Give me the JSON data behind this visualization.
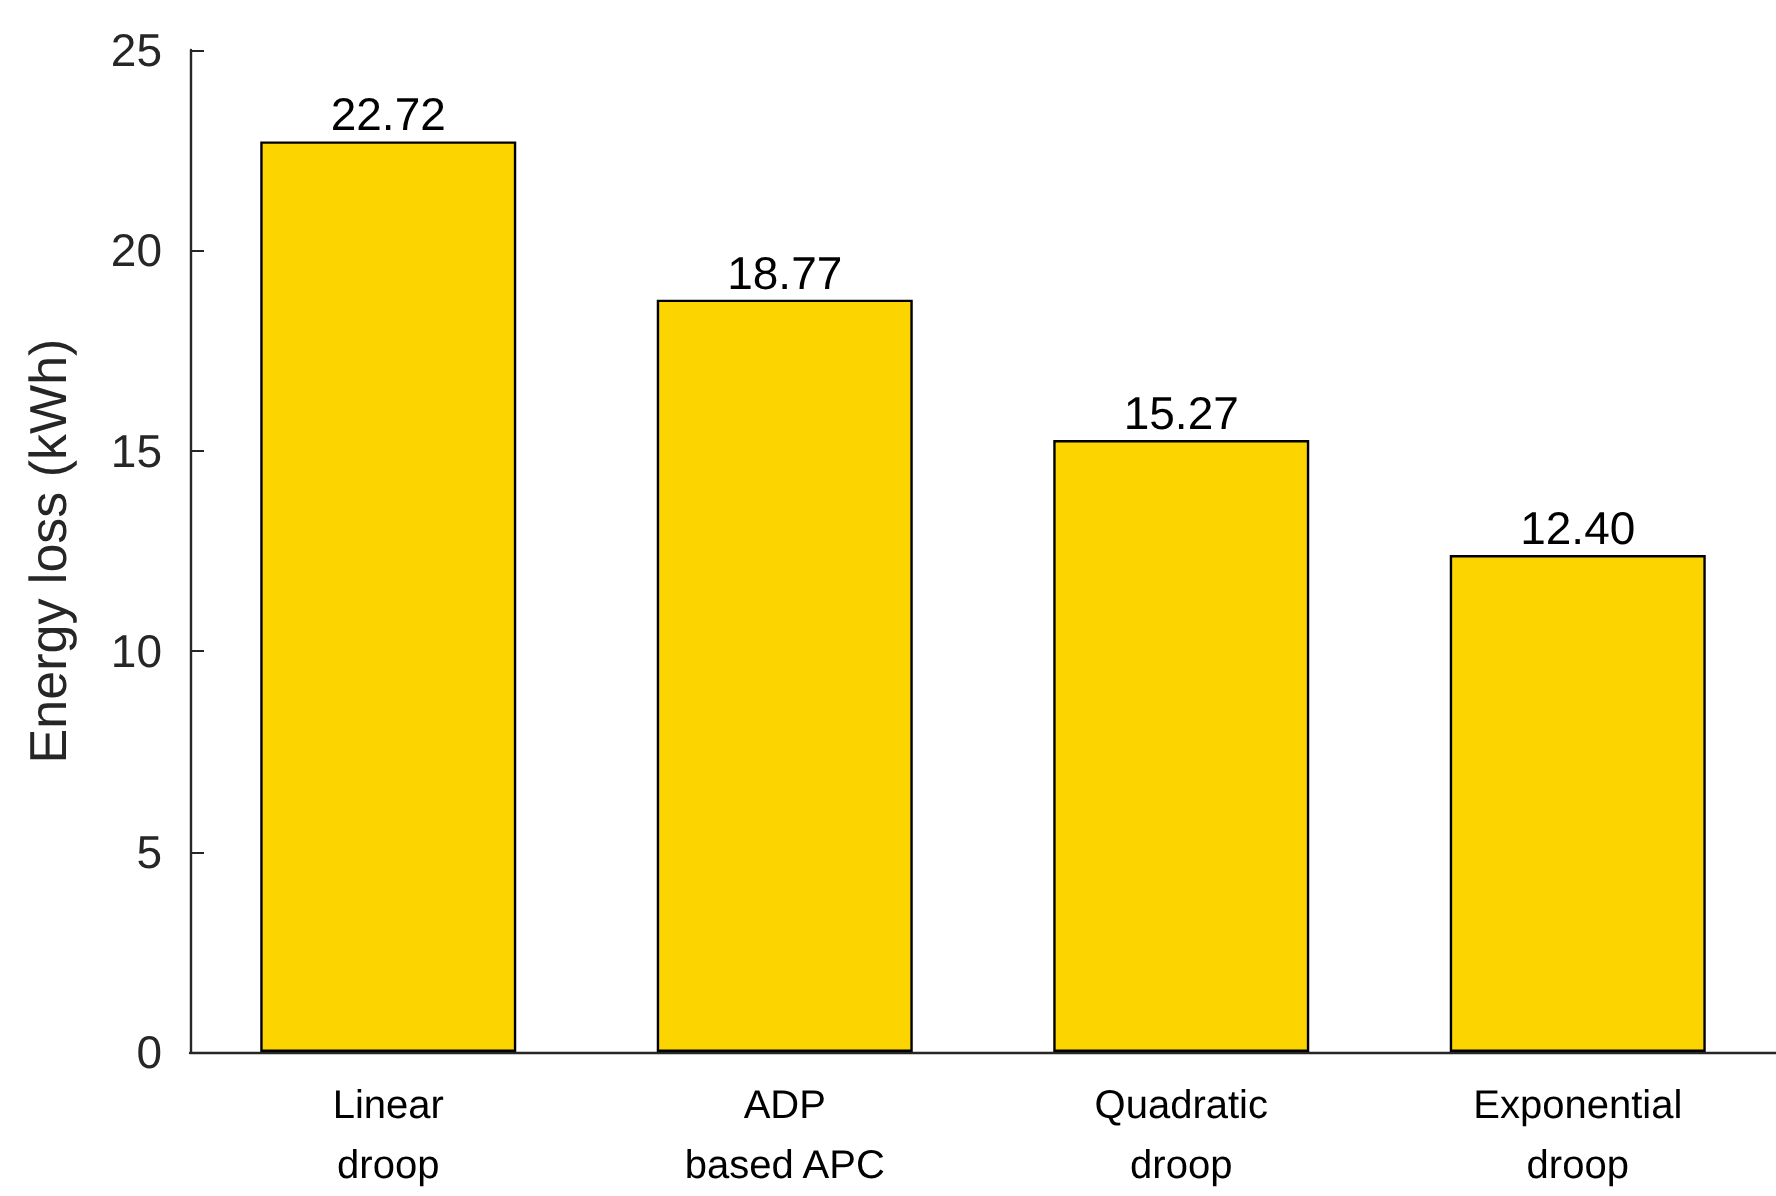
{
  "chart_data": {
    "type": "bar",
    "ylabel": "Energy loss (kWh)",
    "categories": [
      "Linear\ndroop",
      "ADP\nbased APC",
      "Quadratic\ndroop",
      "Exponential\ndroop"
    ],
    "values": [
      22.72,
      18.77,
      15.27,
      12.4
    ],
    "value_labels": [
      "22.72",
      "18.77",
      "15.27",
      "12.40"
    ],
    "color": "#fcd500",
    "ylim": [
      0,
      25
    ],
    "yticks": [
      0,
      5,
      10,
      15,
      20,
      25
    ],
    "grid": false
  }
}
